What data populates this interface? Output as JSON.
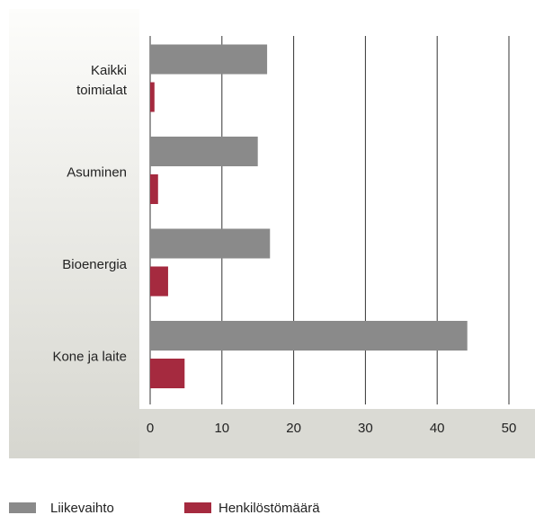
{
  "chart_data": {
    "type": "bar",
    "orientation": "horizontal",
    "categories": [
      "Kaikki toimialat",
      "Asuminen",
      "Bioenergia",
      "Kone ja laite"
    ],
    "series": [
      {
        "name": "Liikevaihto",
        "color": "#8a8a8a",
        "values": [
          16.3,
          15,
          16.7,
          44.2
        ]
      },
      {
        "name": "Henkilöstömäärä",
        "color": "#a52a3f",
        "values": [
          0.6,
          1.1,
          2.5,
          4.8
        ]
      }
    ],
    "xlim": [
      0,
      50
    ],
    "xticks": [
      0,
      10,
      20,
      30,
      40,
      50
    ],
    "grid": true,
    "legend": "bottom"
  }
}
